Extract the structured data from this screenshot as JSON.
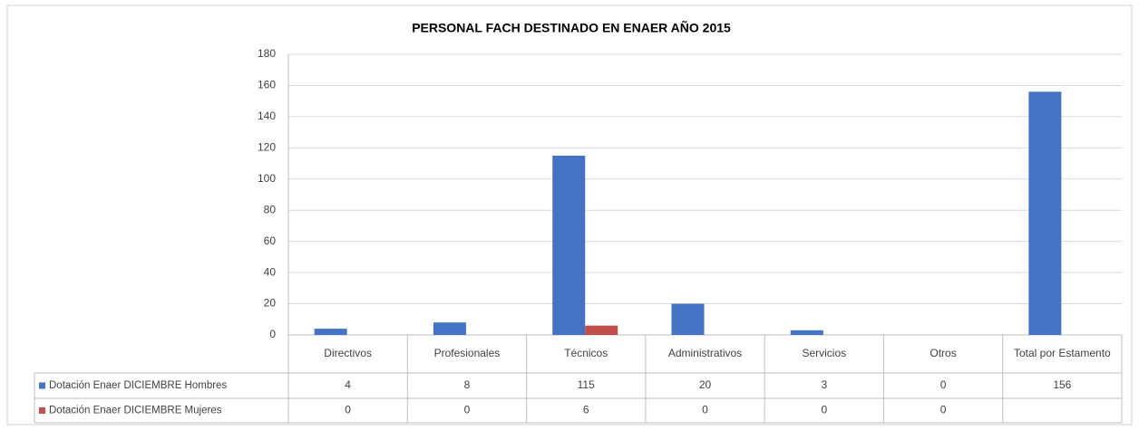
{
  "chart_data": {
    "type": "bar",
    "title": "PERSONAL FACH DESTINADO EN ENAER AÑO 2015",
    "categories": [
      "Directivos",
      "Profesionales",
      "Técnicos",
      "Administrativos",
      "Servicios",
      "Otros",
      "Total por Estamento"
    ],
    "series": [
      {
        "name": "Dotación Enaer DICIEMBRE Hombres",
        "color": "#4472c4",
        "values": [
          4,
          8,
          115,
          20,
          3,
          0,
          156
        ]
      },
      {
        "name": "Dotación Enaer DICIEMBRE Mujeres",
        "color": "#c0504d",
        "values": [
          0,
          0,
          6,
          0,
          0,
          0,
          null
        ]
      }
    ],
    "ylim": [
      0,
      180
    ],
    "yticks": [
      0,
      20,
      40,
      60,
      80,
      100,
      120,
      140,
      160,
      180
    ],
    "grid": true
  }
}
